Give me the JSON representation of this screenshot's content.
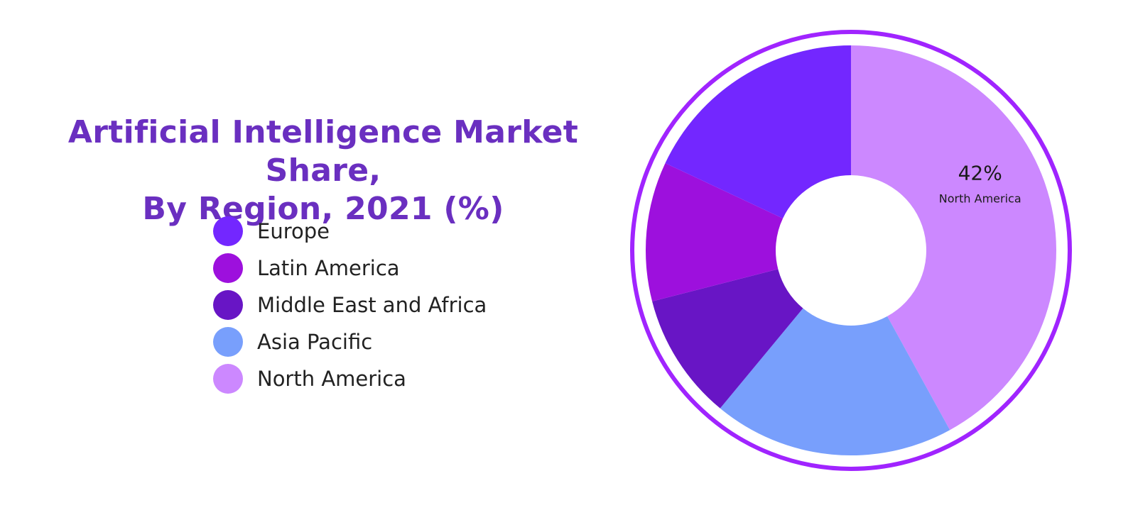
{
  "chart_data": {
    "type": "pie",
    "variant": "donut",
    "title_line1": "Artificial Intelligence Market Share,",
    "title_line2": "By Region, 2021 (%)",
    "legend_placement": "left",
    "slices": [
      {
        "name": "North America",
        "value": 42,
        "color": "#cc88ff"
      },
      {
        "name": "Asia Pacific",
        "value": 19,
        "color": "#789ffc"
      },
      {
        "name": "Middle East and Africa",
        "value": 10,
        "color": "#6815c5"
      },
      {
        "name": "Latin America",
        "value": 11,
        "color": "#9d10dd"
      },
      {
        "name": "Europe",
        "value": 18,
        "color": "#7327ff"
      }
    ],
    "legend": [
      {
        "label": "Europe",
        "color": "#7327ff"
      },
      {
        "label": "Latin America",
        "color": "#9d10dd"
      },
      {
        "label": "Middle East and Africa",
        "color": "#6815c5"
      },
      {
        "label": "Asia Pacific",
        "color": "#789ffc"
      },
      {
        "label": "North America",
        "color": "#cc88ff"
      }
    ],
    "annotation": {
      "value": "42%",
      "label": "North America"
    },
    "ring_color": "#a024ff"
  }
}
